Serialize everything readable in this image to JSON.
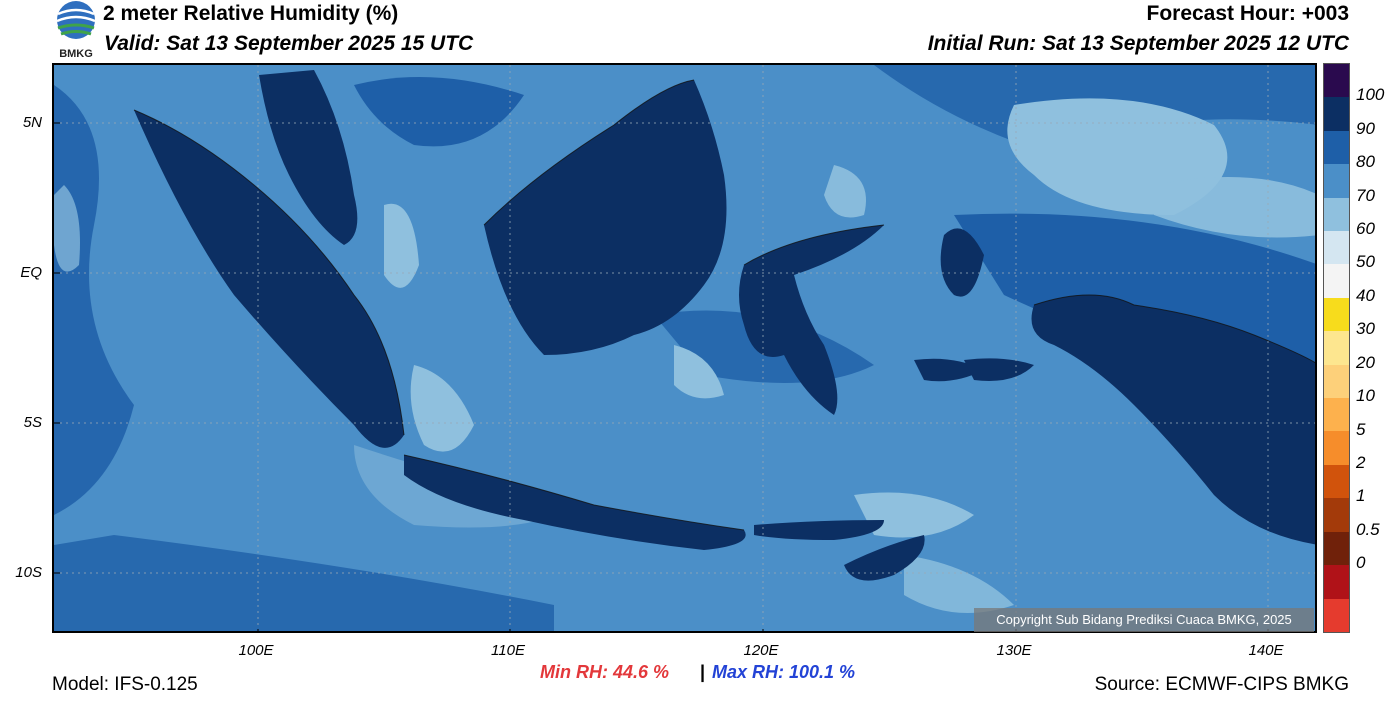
{
  "header": {
    "title": "2 meter Relative Humidity (%)",
    "valid": "Valid: Sat 13 September 2025 15 UTC",
    "forecast_hour": "Forecast Hour: +003",
    "initial_run": "Initial Run: Sat 13 September 2025 12 UTC",
    "logo_text": "BMKG"
  },
  "map": {
    "lat_labels": [
      "5N",
      "EQ",
      "5S",
      "10S"
    ],
    "lon_labels": [
      "100E",
      "110E",
      "120E",
      "130E",
      "140E"
    ],
    "copyright": "Copyright Sub Bidang Prediksi Cuaca BMKG, 2025"
  },
  "colorbar": {
    "labels": [
      "100",
      "90",
      "80",
      "70",
      "60",
      "50",
      "40",
      "30",
      "20",
      "10",
      "5",
      "2",
      "1",
      "0.5",
      "0"
    ],
    "colors": [
      "#2a0a4e",
      "#0c2f63",
      "#1e5fa8",
      "#4b8fc8",
      "#8fc0de",
      "#d4e6f1",
      "#f4f4f4",
      "#f7dc1c",
      "#fde68f",
      "#fdd07a",
      "#fdb14d",
      "#f68d2b",
      "#d1530c",
      "#a33a0a",
      "#70210a",
      "#b01218",
      "#e53b2e"
    ]
  },
  "footer": {
    "min_rh": "Min RH:  44.6 %",
    "separator": "|",
    "max_rh": "Max RH: 100.1 %",
    "model": "Model: IFS-0.125",
    "source": "Source: ECMWF-CIPS BMKG"
  }
}
